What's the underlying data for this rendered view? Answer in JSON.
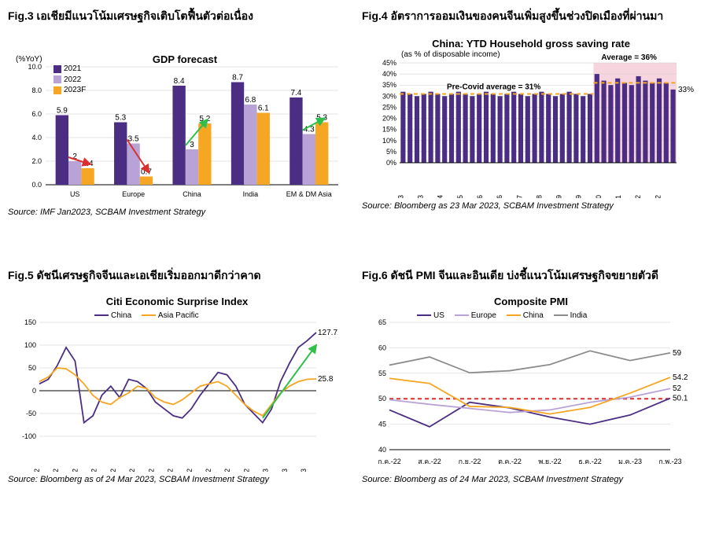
{
  "colors": {
    "purple": "#4b2e83",
    "lightPurple": "#b9a3d6",
    "orange": "#f5a623",
    "gray": "#8c8c8c",
    "grid": "#cccccc",
    "axis": "#000000",
    "redArrow": "#d92f2f",
    "greenArrow": "#2fbf4a",
    "pinkFill": "#f6d5df",
    "dashRed": "#d92f2f",
    "dashOrange": "#f5a623",
    "bg": "#ffffff"
  },
  "fig3": {
    "figTitle": "Fig.3 เอเชียมีแนวโน้มเศรษฐกิจเติบโตฟื้นตัวต่อเนื่อง",
    "chartTitle": "GDP forecast",
    "yAxisLabel": "(%YoY)",
    "source": "Source: IMF Jan2023, SCBAM Investment Strategy",
    "ylim": [
      0,
      10
    ],
    "ytickStep": 2,
    "categories": [
      "US",
      "Europe",
      "China",
      "India",
      "EM & DM Asia"
    ],
    "series": [
      {
        "name": "2021",
        "color": "#4b2e83",
        "values": [
          5.9,
          5.3,
          8.4,
          8.7,
          7.4
        ]
      },
      {
        "name": "2022",
        "color": "#b9a3d6",
        "values": [
          2.0,
          3.5,
          3.0,
          6.8,
          4.3
        ]
      },
      {
        "name": "2023F",
        "color": "#f5a623",
        "values": [
          1.4,
          0.7,
          5.2,
          6.1,
          5.3
        ]
      }
    ],
    "arrows": [
      {
        "cat": 0,
        "dir": "down",
        "color": "#d92f2f"
      },
      {
        "cat": 1,
        "dir": "down",
        "color": "#d92f2f"
      },
      {
        "cat": 2,
        "dir": "up",
        "color": "#2fbf4a"
      },
      {
        "cat": 4,
        "dir": "up",
        "color": "#2fbf4a"
      }
    ]
  },
  "fig4": {
    "figTitle": "Fig.4 อัตราการออมเงินของคนจีนเพิ่มสูงขึ้นช่วงปิดเมืองที่ผ่านมา",
    "chartTitle": "China: YTD Household gross saving rate",
    "subtitle": "(as % of disposable income)",
    "source": "Source: Bloomberg as 23 Mar 2023, SCBAM Investment Strategy",
    "ylim": [
      0,
      45
    ],
    "ytickStep": 5,
    "preCovidLabel": "Pre-Covid average = 31%",
    "avgLabel": "Average = 36%",
    "lastLabel": "33%",
    "preCovidLine": 31,
    "avgLine": 36,
    "highlightStart": 28,
    "xticks": [
      "Mar-13",
      "Dec-13",
      "Sep-14",
      "Jun-15",
      "Mar-16",
      "Dec-16",
      "Sep-17",
      "Jun-18",
      "Mar-19",
      "Dec-19",
      "Sep-20",
      "Jun-21",
      "Mar-22",
      "Dec-22"
    ],
    "values": [
      32,
      31,
      30,
      31,
      32,
      31,
      30,
      31,
      32,
      31,
      30,
      31,
      32,
      31,
      30,
      31,
      32,
      31,
      30,
      31,
      32,
      31,
      30,
      31,
      32,
      31,
      30,
      31,
      40,
      37,
      35,
      38,
      36,
      35,
      39,
      37,
      36,
      38,
      36,
      33
    ]
  },
  "fig5": {
    "figTitle": "Fig.5 ดัชนีเศรษฐกิจจีนและเอเชียเริ่มออกมาดีกว่าคาด",
    "chartTitle": "Citi Economic Surprise Index",
    "source": "Source: Bloomberg as of 24 Mar 2023, SCBAM Investment Strategy",
    "ylim": [
      -100,
      150
    ],
    "ytickStep": 50,
    "xticks": [
      "Jan-22",
      "Feb-22",
      "Mar-22",
      "Apr-22",
      "May-22",
      "Jun-22",
      "Jul-22",
      "Aug-22",
      "Sep-22",
      "Oct-22",
      "Nov-22",
      "Dec-22",
      "Jan-23",
      "Feb-23",
      "Mar-23"
    ],
    "series": [
      {
        "name": "China",
        "color": "#4b2e83",
        "end": 127.7,
        "values": [
          15,
          25,
          55,
          95,
          65,
          -70,
          -55,
          -10,
          10,
          -15,
          25,
          20,
          5,
          -25,
          -40,
          -55,
          -60,
          -40,
          -10,
          15,
          40,
          35,
          10,
          -30,
          -50,
          -70,
          -40,
          20,
          60,
          95,
          110,
          127.7
        ]
      },
      {
        "name": "Asia Pacific",
        "color": "#f5a623",
        "end": 25.8,
        "values": [
          20,
          30,
          50,
          48,
          35,
          15,
          -10,
          -25,
          -30,
          -15,
          -5,
          10,
          5,
          -15,
          -25,
          -30,
          -20,
          -5,
          10,
          15,
          20,
          10,
          -10,
          -30,
          -45,
          -55,
          -30,
          -5,
          10,
          20,
          25,
          25.8
        ]
      }
    ]
  },
  "fig6": {
    "figTitle": "Fig.6 ดัชนี PMI จีนและอินเดีย บ่งชี้แนวโน้มเศรษฐกิจขยายตัวดี",
    "chartTitle": "Composite PMI",
    "source": "Source: Bloomberg as of 24 Mar 2023, SCBAM Investment Strategy",
    "ylim": [
      40,
      65
    ],
    "ytickStep": 5,
    "refLine": 50,
    "xticks": [
      "ก.ค.-22",
      "ส.ค.-22",
      "ก.ย.-22",
      "ต.ค.-22",
      "พ.ย.-22",
      "ธ.ค.-22",
      "ม.ค.-23",
      "ก.พ.-23"
    ],
    "series": [
      {
        "name": "US",
        "color": "#4b2e83",
        "end": 50.1,
        "values": [
          47.8,
          44.5,
          49.3,
          48.2,
          46.4,
          45,
          46.8,
          50.1
        ]
      },
      {
        "name": "Europe",
        "color": "#b9a3d6",
        "end": 52,
        "values": [
          49.8,
          48.9,
          48.1,
          47.3,
          47.8,
          49.3,
          50.3,
          52
        ]
      },
      {
        "name": "China",
        "color": "#f5a623",
        "end": 54.2,
        "values": [
          54,
          53,
          48.5,
          48.3,
          47,
          48.3,
          51.1,
          54.2
        ]
      },
      {
        "name": "India",
        "color": "#8c8c8c",
        "end": 59,
        "values": [
          56.6,
          58.2,
          55.1,
          55.5,
          56.7,
          59.4,
          57.5,
          59
        ]
      }
    ]
  }
}
